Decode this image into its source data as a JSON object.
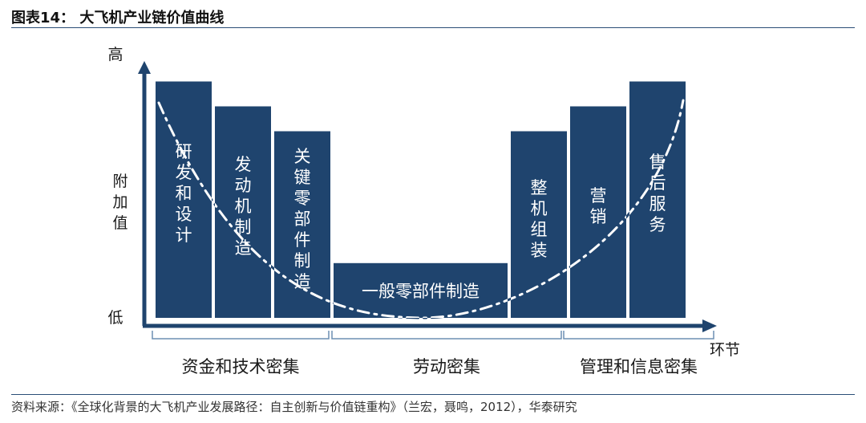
{
  "figure": {
    "title": "图表14：  大飞机产业链价值曲线",
    "source": "资料来源：《全球化背景的大飞机产业发展路径：自主创新与价值链重构》（兰宏，聂鸣，2012），华泰研究"
  },
  "colors": {
    "bar": "#1f446e",
    "axis": "#1f446e",
    "bar_text": "#ffffff",
    "curve": "#ffffff",
    "curve_dark": "#1f446e",
    "brace": "#6d8fb3"
  },
  "chart_data": {
    "type": "bar",
    "title": "大飞机产业链价值曲线",
    "xlabel": "环节",
    "ylabel": "附加值",
    "y_high": "高",
    "y_low": "低",
    "ylim": [
      0,
      10
    ],
    "categories": [
      "研发和设计",
      "发动机制造",
      "关键零部件制造",
      "一般零部件制造",
      "整机组装",
      "营销",
      "售后服务"
    ],
    "values": [
      9.5,
      8.5,
      7.5,
      2.2,
      7.5,
      8.5,
      9.5
    ],
    "groups": [
      {
        "label": "资金和技术密集",
        "categories": [
          "研发和设计",
          "发动机制造",
          "关键零部件制造"
        ]
      },
      {
        "label": "劳动密集",
        "categories": [
          "一般零部件制造"
        ]
      },
      {
        "label": "管理和信息密集",
        "categories": [
          "整机组装",
          "营销",
          "售后服务"
        ]
      }
    ],
    "curve": {
      "style": "dash-dot",
      "shape": "U",
      "note": ""
    }
  }
}
